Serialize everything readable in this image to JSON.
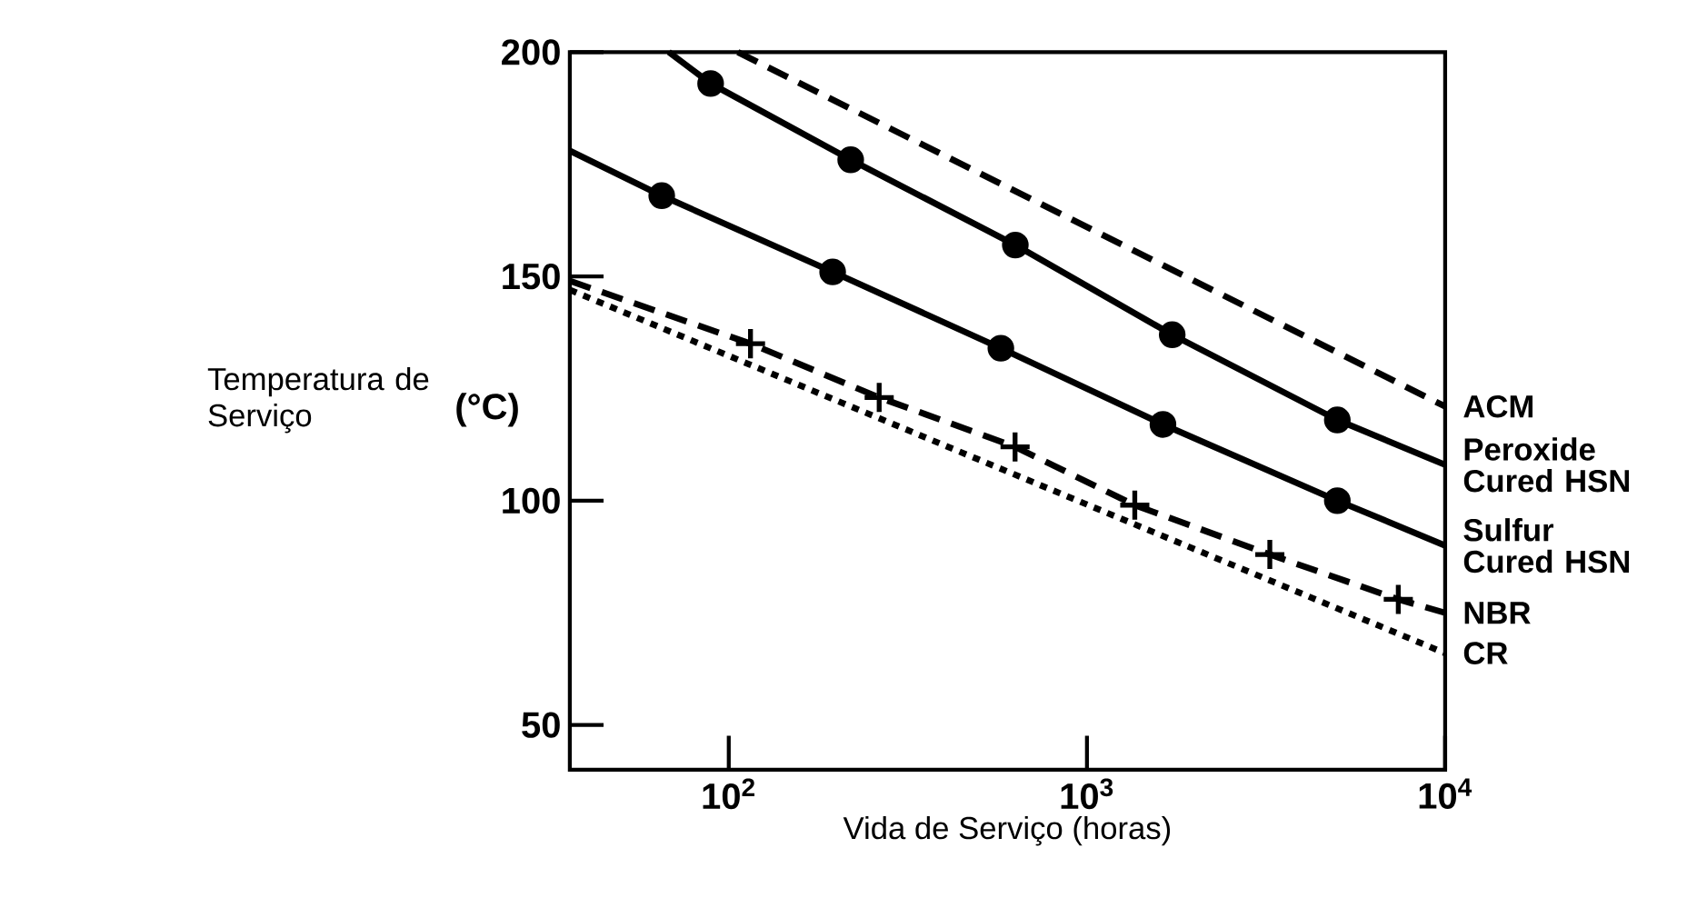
{
  "chart_data": {
    "type": "line",
    "xlabel": "Vida de Serviço (horas)",
    "ylabel": "Temperatura de Serviço",
    "annotations": [
      "(°C)"
    ],
    "log": "x",
    "xlim": [
      36,
      10000
    ],
    "ylim": [
      40,
      200
    ],
    "xticks": [
      {
        "value": 100,
        "label": "10$^{2}$"
      },
      {
        "value": 1000,
        "label": "10$^{3}$"
      },
      {
        "value": 10000,
        "label": "10$^{4}$"
      }
    ],
    "yticks": [
      50,
      100,
      150,
      200
    ],
    "grid": false,
    "legend": false,
    "series": [
      {
        "name": "ACM",
        "color": "#000000",
        "line_style": "dashed",
        "marker": "none",
        "x": [
          106,
          10000
        ],
        "values": [
          200,
          121
        ]
      },
      {
        "name": "Peroxide Cured HSN",
        "color": "#000000",
        "line_style": "solid",
        "marker": "none",
        "x": [
          68,
          89,
          219,
          631,
          1730,
          5000,
          10000
        ],
        "values": [
          200,
          193,
          176,
          157,
          137,
          118,
          108
        ]
      },
      {
        "name": "Sulfur Cured HSN",
        "color": "#000000",
        "line_style": "solid",
        "marker": "none",
        "x": [
          36,
          65,
          195,
          575,
          1630,
          5000,
          10000
        ],
        "values": [
          178,
          168,
          151,
          134,
          117,
          100,
          90
        ]
      },
      {
        "name": "NBR",
        "color": "#000000",
        "line_style": "dashed",
        "marker": "none",
        "x": [
          36,
          115,
          263,
          630,
          1360,
          3240,
          7400,
          10000
        ],
        "values": [
          149,
          135,
          123,
          112,
          99,
          88,
          78,
          75
        ]
      },
      {
        "name": "CR",
        "color": "#000000",
        "line_style": "dotted",
        "marker": "none",
        "x": [
          36,
          10000
        ],
        "values": [
          147,
          66
        ]
      },
      {
        "type": "scatter",
        "color": "#000000",
        "marker": "circle",
        "x": [
          89,
          219,
          631,
          1730,
          5000
        ],
        "values": [
          193,
          176,
          157,
          137,
          118
        ]
      },
      {
        "type": "scatter",
        "color": "#000000",
        "marker": "circle",
        "x": [
          65,
          195,
          575,
          1630,
          5000
        ],
        "values": [
          168,
          151,
          134,
          117,
          100
        ]
      },
      {
        "type": "scatter",
        "color": "#000000",
        "marker": "cross",
        "x": [
          115,
          263,
          630,
          1360,
          3240,
          7400
        ],
        "values": [
          135,
          123,
          112,
          99,
          88,
          78
        ]
      }
    ]
  }
}
